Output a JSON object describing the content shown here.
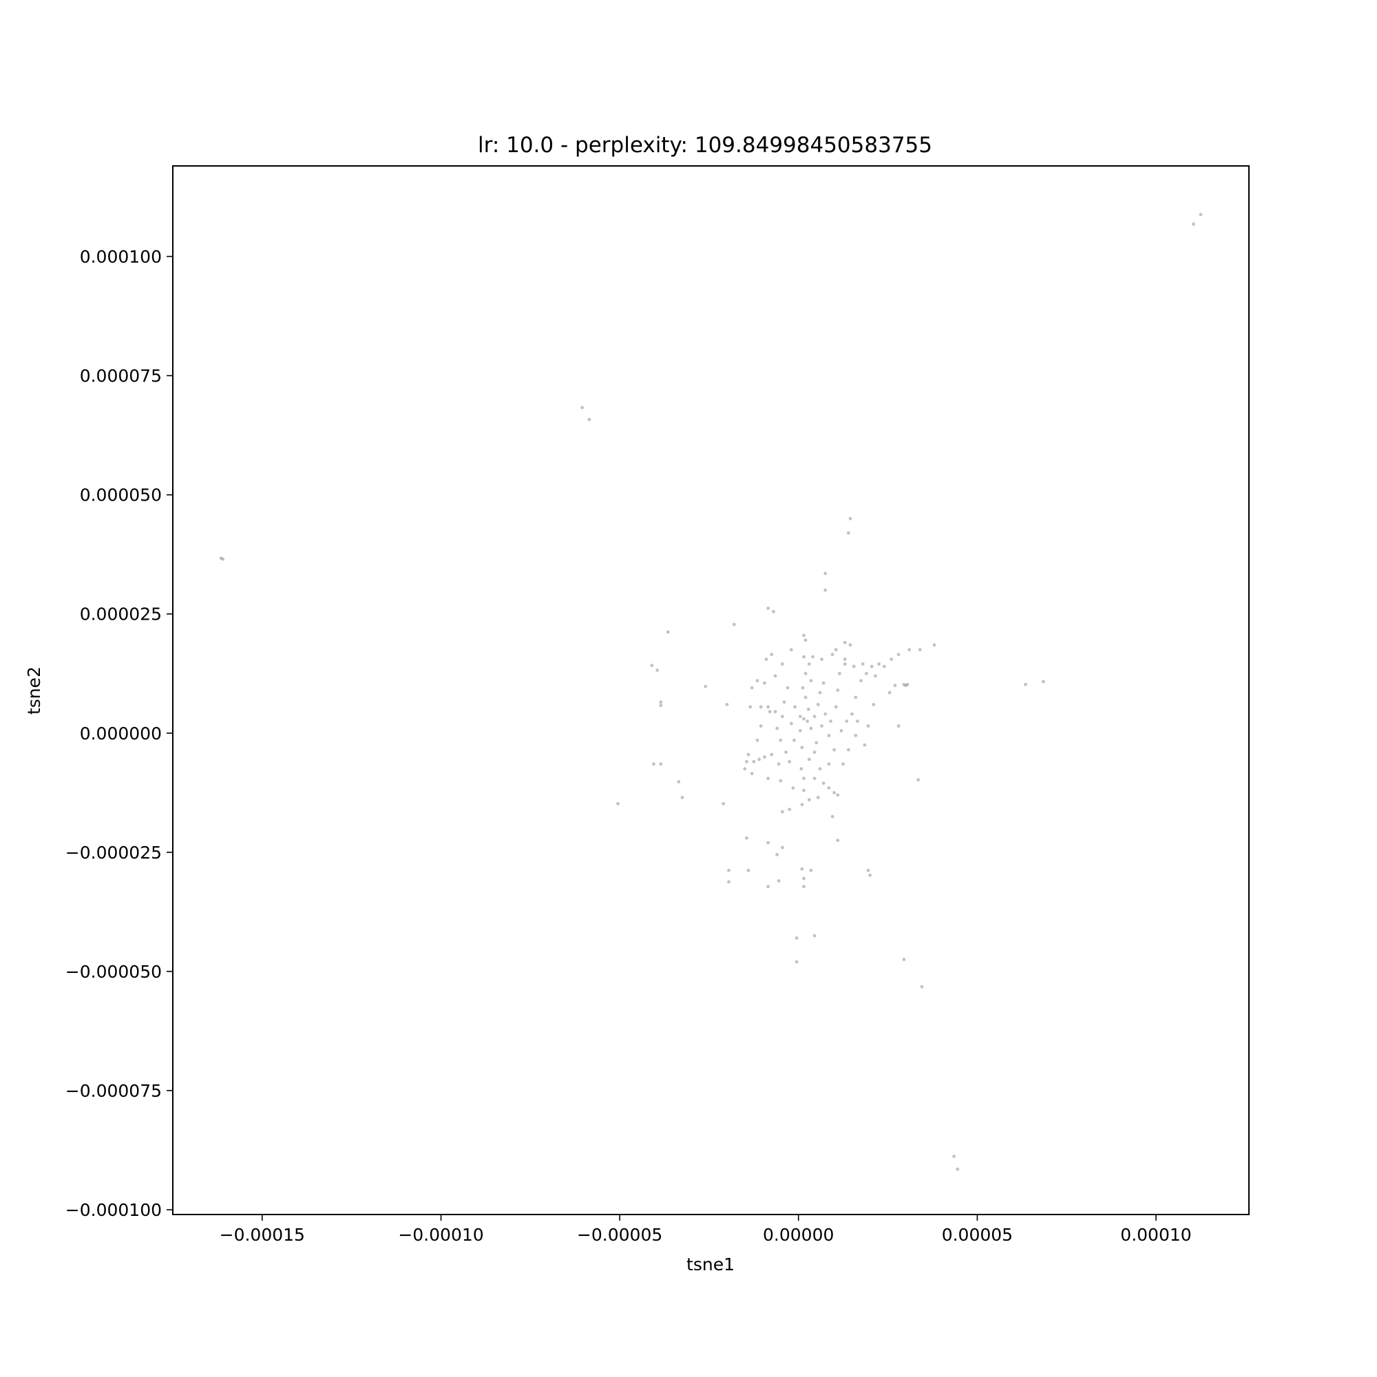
{
  "chart_data": {
    "type": "scatter",
    "title": "lr: 10.0 - perplexity: 109.84998450583755",
    "xlabel": "tsne1",
    "ylabel": "tsne2",
    "xlim": [
      -0.000175,
      0.000126
    ],
    "ylim": [
      -0.000101,
      0.000119
    ],
    "x_ticks": [
      {
        "value": -0.00015,
        "label": "−0.00015"
      },
      {
        "value": -0.0001,
        "label": "−0.00010"
      },
      {
        "value": -5e-05,
        "label": "−0.00005"
      },
      {
        "value": 0.0,
        "label": "0.00000"
      },
      {
        "value": 5e-05,
        "label": "0.00005"
      },
      {
        "value": 0.0001,
        "label": "0.00010"
      }
    ],
    "y_ticks": [
      {
        "value": 0.0001,
        "label": "0.000100"
      },
      {
        "value": 7.5e-05,
        "label": "0.000075"
      },
      {
        "value": 5e-05,
        "label": "0.000050"
      },
      {
        "value": 2.5e-05,
        "label": "0.000025"
      },
      {
        "value": 0.0,
        "label": "0.000000"
      },
      {
        "value": -2.5e-05,
        "label": "−0.000025"
      },
      {
        "value": -5e-05,
        "label": "−0.000050"
      },
      {
        "value": -7.5e-05,
        "label": "−0.000075"
      },
      {
        "value": -0.0001,
        "label": "−0.000100"
      }
    ],
    "grid": false,
    "legend": "none",
    "marker_color": "#778899",
    "marker_opacity": 0.5,
    "series": [
      {
        "points": [
          [
            1.5e-06,
            3e-06
          ],
          [
            2.8e-06,
            5e-06
          ],
          [
            5e-07,
            5e-07
          ],
          [
            3.5e-06,
            1e-06
          ],
          [
            -1.2e-06,
            -1.5e-06
          ],
          [
            2e-06,
            7.5e-06
          ],
          [
            4.5e-06,
            3.5e-06
          ],
          [
            -2e-06,
            2e-06
          ],
          [
            1e-06,
            -3e-06
          ],
          [
            5.5e-06,
            6e-06
          ],
          [
            -3.5e-06,
            -4e-06
          ],
          [
            3e-06,
            -5.5e-06
          ],
          [
            6.5e-06,
            1.5e-06
          ],
          [
            -4.5e-06,
            3.5e-06
          ],
          [
            1.2e-06,
            9.5e-06
          ],
          [
            5e-06,
            -2e-06
          ],
          [
            -2.5e-06,
            -6e-06
          ],
          [
            7.5e-06,
            4e-06
          ],
          [
            2.5e-06,
            2.5e-06
          ],
          [
            -1e-06,
            5.5e-06
          ],
          [
            8.5e-06,
            -5e-07
          ],
          [
            -5e-06,
            -1.5e-06
          ],
          [
            3.5e-06,
            1.1e-05
          ],
          [
            6e-06,
            8.5e-06
          ],
          [
            -4e-06,
            6.5e-06
          ],
          [
            9e-06,
            2.5e-06
          ],
          [
            8e-07,
            -7.5e-06
          ],
          [
            4.5e-06,
            -4e-06
          ],
          [
            -5.5e-06,
            -6.5e-06
          ],
          [
            1e-05,
            -3.5e-06
          ],
          [
            2e-06,
            1.25e-05
          ],
          [
            7e-06,
            1.05e-05
          ],
          [
            -6e-06,
            1e-06
          ],
          [
            1.05e-05,
            5.5e-06
          ],
          [
            1.5e-06,
            -9.5e-06
          ],
          [
            6e-06,
            -7.5e-06
          ],
          [
            -6.5e-06,
            4.5e-06
          ],
          [
            1.1e-05,
            9e-06
          ],
          [
            3e-06,
            1.45e-05
          ],
          [
            -3e-06,
            9.5e-06
          ],
          [
            1.2e-05,
            5e-07
          ],
          [
            -7.5e-06,
            -4.5e-06
          ],
          [
            8.5e-06,
            -6.5e-06
          ],
          [
            5e-07,
            3.5e-06
          ],
          [
            1.5e-06,
            1.6e-05
          ],
          [
            1.3e-05,
            1.55e-05
          ],
          [
            1.55e-05,
            1.4e-05
          ],
          [
            1.8e-05,
            1.45e-05
          ],
          [
            2.05e-05,
            1.4e-05
          ],
          [
            2.25e-05,
            1.45e-05
          ],
          [
            2.4e-05,
            1.4e-05
          ],
          [
            1.3e-05,
            1.9e-05
          ],
          [
            1.45e-05,
            1.85e-05
          ],
          [
            2e-06,
            1.95e-05
          ],
          [
            1.5e-06,
            2.05e-05
          ],
          [
            6.5e-06,
            1.55e-05
          ],
          [
            4e-06,
            1.6e-05
          ],
          [
            -8e-06,
            4.5e-06
          ],
          [
            -8.5e-06,
            5.5e-06
          ],
          [
            -9.5e-06,
            -5e-06
          ],
          [
            -1.1e-05,
            -5.5e-06
          ],
          [
            -1.25e-05,
            -6e-06
          ],
          [
            -1.05e-05,
            5.5e-06
          ],
          [
            -9.5e-06,
            1.05e-05
          ],
          [
            -6.5e-06,
            1.2e-05
          ],
          [
            -4.5e-06,
            1.45e-05
          ],
          [
            4.5e-06,
            -9.5e-06
          ],
          [
            7e-06,
            -1.05e-05
          ],
          [
            8.5e-06,
            -1.15e-05
          ],
          [
            1e-05,
            -1.25e-05
          ],
          [
            1.1e-05,
            -1.3e-05
          ],
          [
            1.25e-05,
            -6.5e-06
          ],
          [
            1.4e-05,
            -3.5e-06
          ],
          [
            1.5e-05,
            4e-06
          ],
          [
            1.6e-05,
            7.5e-06
          ],
          [
            1.75e-05,
            1.1e-05
          ],
          [
            1.9e-05,
            1.25e-05
          ],
          [
            2.15e-05,
            1.2e-05
          ],
          [
            2.6e-05,
            1.55e-05
          ],
          [
            2.8e-05,
            1.65e-05
          ],
          [
            3.1e-05,
            1.75e-05
          ],
          [
            3.4e-05,
            1.75e-05
          ],
          [
            3.8e-05,
            1.85e-05
          ],
          [
            2.7e-05,
            1e-05
          ],
          [
            3e-05,
            1e-05
          ],
          [
            2.8e-05,
            1.5e-06
          ],
          [
            1.95e-05,
            1.5e-06
          ],
          [
            1.85e-05,
            -2.5e-06
          ],
          [
            -5e-06,
            -1e-05
          ],
          [
            -1.5e-06,
            -1.15e-05
          ],
          [
            1.5e-06,
            -1.2e-05
          ],
          [
            -1.15e-05,
            1.1e-05
          ],
          [
            -1.3e-05,
            9.5e-06
          ],
          [
            -1.35e-05,
            5.5e-06
          ],
          [
            -1.4e-05,
            -4.5e-06
          ],
          [
            -1.45e-05,
            -6e-06
          ],
          [
            -1.5e-05,
            -7.5e-06
          ],
          [
            -1.3e-05,
            -8.5e-06
          ],
          [
            -7.5e-06,
            1.65e-05
          ],
          [
            -9e-06,
            1.55e-05
          ],
          [
            1.05e-05,
            1.75e-05
          ],
          [
            9.5e-06,
            1.65e-05
          ],
          [
            -2e-06,
            1.75e-05
          ],
          [
            3e-06,
            -1.4e-05
          ],
          [
            5.5e-06,
            -1.35e-05
          ],
          [
            -8.5e-06,
            -9.5e-06
          ],
          [
            1.6e-05,
            -5e-07
          ],
          [
            1.65e-05,
            2.5e-06
          ],
          [
            1.3e-05,
            1.45e-05
          ],
          [
            1.15e-05,
            1.25e-05
          ],
          [
            2.55e-05,
            8.5e-06
          ],
          [
            2.1e-05,
            6e-06
          ],
          [
            -1.05e-05,
            1.5e-06
          ],
          [
            -1.15e-05,
            -1.5e-06
          ],
          [
            -2.5e-06,
            -1.6e-05
          ],
          [
            1e-06,
            -1.5e-05
          ],
          [
            -4.5e-06,
            -1.65e-05
          ],
          [
            9.5e-06,
            -1.75e-05
          ],
          [
            1.35e-05,
            2.5e-06
          ],
          [
            -0.0001615,
            3.67e-05
          ],
          [
            -0.000161,
            3.65e-05
          ],
          [
            0.0001105,
            0.0001068
          ],
          [
            0.0001125,
            0.0001088
          ],
          [
            -6.05e-05,
            6.83e-05
          ],
          [
            -5.85e-05,
            6.58e-05
          ],
          [
            1.45e-05,
            4.5e-05
          ],
          [
            1.4e-05,
            4.2e-05
          ],
          [
            7.5e-06,
            3.35e-05
          ],
          [
            7.5e-06,
            3e-05
          ],
          [
            -8.5e-06,
            2.62e-05
          ],
          [
            -7e-06,
            2.55e-05
          ],
          [
            -1.8e-05,
            2.28e-05
          ],
          [
            -3.65e-05,
            2.12e-05
          ],
          [
            -4.1e-05,
            1.42e-05
          ],
          [
            -3.95e-05,
            1.32e-05
          ],
          [
            -3.85e-05,
            6.5e-06
          ],
          [
            -3.85e-05,
            5.8e-06
          ],
          [
            -2.6e-05,
            9.8e-06
          ],
          [
            -2e-05,
            6e-06
          ],
          [
            -4.05e-05,
            -6.5e-06
          ],
          [
            -3.85e-05,
            -6.5e-06
          ],
          [
            -3.35e-05,
            -1.02e-05
          ],
          [
            -3.25e-05,
            -1.35e-05
          ],
          [
            -5.05e-05,
            -1.48e-05
          ],
          [
            -2.1e-05,
            -1.48e-05
          ],
          [
            -1.45e-05,
            -2.2e-05
          ],
          [
            -8.5e-06,
            -2.3e-05
          ],
          [
            -4.5e-06,
            -2.4e-05
          ],
          [
            -6e-06,
            -2.55e-05
          ],
          [
            1.1e-05,
            -2.25e-05
          ],
          [
            -1.95e-05,
            -2.88e-05
          ],
          [
            -1.95e-05,
            -3.12e-05
          ],
          [
            -1.4e-05,
            -2.88e-05
          ],
          [
            -5.5e-06,
            -3.1e-05
          ],
          [
            -8.5e-06,
            -3.22e-05
          ],
          [
            1e-06,
            -2.85e-05
          ],
          [
            1.5e-06,
            -3.05e-05
          ],
          [
            1.5e-06,
            -3.22e-05
          ],
          [
            3.5e-06,
            -2.88e-05
          ],
          [
            1.95e-05,
            -2.88e-05
          ],
          [
            2e-05,
            -2.98e-05
          ],
          [
            3.05e-05,
            1.02e-05
          ],
          [
            2.95e-05,
            1.02e-05
          ],
          [
            3.35e-05,
            -9.8e-06
          ],
          [
            6.35e-05,
            1.02e-05
          ],
          [
            6.85e-05,
            1.08e-05
          ],
          [
            -5e-07,
            -4.3e-05
          ],
          [
            4.5e-06,
            -4.25e-05
          ],
          [
            -5e-07,
            -4.8e-05
          ],
          [
            2.95e-05,
            -4.75e-05
          ],
          [
            3.45e-05,
            -5.32e-05
          ],
          [
            4.35e-05,
            -8.88e-05
          ],
          [
            4.45e-05,
            -9.15e-05
          ]
        ]
      }
    ]
  }
}
